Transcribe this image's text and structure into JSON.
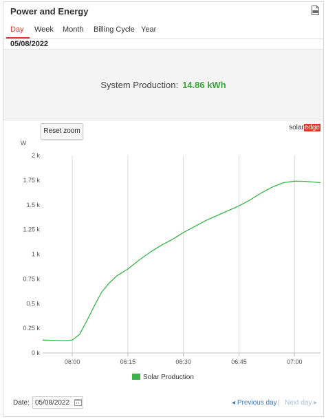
{
  "header": {
    "title": "Power and Energy",
    "export_icon": "csv-file-icon"
  },
  "tabs": [
    {
      "label": "Day",
      "active": true
    },
    {
      "label": "Week",
      "active": false
    },
    {
      "label": "Month",
      "active": false
    },
    {
      "label": "Billing Cycle",
      "active": false
    },
    {
      "label": "Year",
      "active": false
    }
  ],
  "selected_date": "05/08/2022",
  "summary": {
    "label": "System Production:",
    "value": "14.86 kWh",
    "value_color": "#3aa535"
  },
  "chart": {
    "reset_zoom_label": "Reset zoom",
    "brand_prefix": "solar",
    "brand_suffix": "edge"
  },
  "chart_data": {
    "type": "line",
    "ylabel": "W",
    "ylim": [
      0,
      2000
    ],
    "y_ticks": [
      {
        "value": 0,
        "label": "0 k"
      },
      {
        "value": 250,
        "label": "0.25 k"
      },
      {
        "value": 500,
        "label": "0.5 k"
      },
      {
        "value": 750,
        "label": "0.75 k"
      },
      {
        "value": 1000,
        "label": "1 k"
      },
      {
        "value": 1250,
        "label": "1.25 k"
      },
      {
        "value": 1500,
        "label": "1.5 k"
      },
      {
        "value": 1750,
        "label": "1.75 k"
      },
      {
        "value": 2000,
        "label": "2 k"
      }
    ],
    "x_ticks": [
      "06:00",
      "06:15",
      "06:30",
      "06:45",
      "07:00"
    ],
    "xlim": [
      "05:52",
      "07:07"
    ],
    "grid": "vertical",
    "legend": "bottom",
    "series": [
      {
        "name": "Solar Production",
        "color": "#3ab44a",
        "points": [
          [
            "05:52",
            130
          ],
          [
            "05:55",
            128
          ],
          [
            "05:58",
            125
          ],
          [
            "06:00",
            130
          ],
          [
            "06:02",
            190
          ],
          [
            "06:04",
            330
          ],
          [
            "06:06",
            480
          ],
          [
            "06:08",
            620
          ],
          [
            "06:10",
            710
          ],
          [
            "06:12",
            780
          ],
          [
            "06:15",
            850
          ],
          [
            "06:18",
            940
          ],
          [
            "06:21",
            1020
          ],
          [
            "06:24",
            1090
          ],
          [
            "06:27",
            1150
          ],
          [
            "06:30",
            1220
          ],
          [
            "06:33",
            1280
          ],
          [
            "06:36",
            1340
          ],
          [
            "06:39",
            1390
          ],
          [
            "06:42",
            1440
          ],
          [
            "06:45",
            1490
          ],
          [
            "06:48",
            1550
          ],
          [
            "06:51",
            1620
          ],
          [
            "06:54",
            1680
          ],
          [
            "06:57",
            1725
          ],
          [
            "07:00",
            1740
          ],
          [
            "07:03",
            1738
          ],
          [
            "07:07",
            1725
          ]
        ]
      }
    ]
  },
  "footer": {
    "date_label": "Date:",
    "date_value": "05/08/2022",
    "prev_label": "Previous day",
    "separator": "|",
    "next_label": "Next day"
  }
}
